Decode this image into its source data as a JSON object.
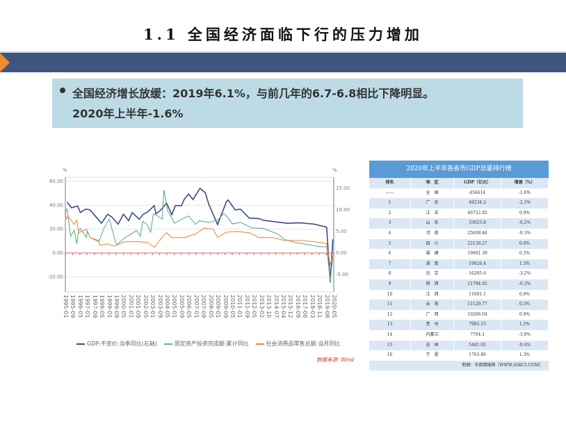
{
  "slide": {
    "title": "1.1 全国经济面临下行的压力增加",
    "note_line1": "全国经济增长放缓：2019年6.1%，与前几年的6.7-6.8相比下降明显。",
    "note_line2": "2020年上半年-1.6%",
    "colors": {
      "bar": "#3e5580",
      "accent": "#ee8c2e",
      "note_bg": "#bddbe5"
    }
  },
  "chart_data": {
    "type": "line",
    "left_unit": "%",
    "right_unit": "%",
    "left_ticks": [
      "60.00",
      "40.00",
      "20.00",
      "0.00",
      "-20.00"
    ],
    "right_ticks": [
      "15.00",
      "10.00",
      "5.00",
      "0.00",
      "-5.00"
    ],
    "ylim_left": [
      -20,
      60
    ],
    "ylim_right": [
      -5,
      15
    ],
    "x_ticks": [
      "1995-01",
      "1995-09",
      "1996-05",
      "1997-01",
      "1997-09",
      "1998-05",
      "1999-01",
      "1999-09",
      "2000-05",
      "2001-01",
      "2001-09",
      "2002-05",
      "2003-01",
      "2003-09",
      "2004-05",
      "2005-01",
      "2005-09",
      "2006-05",
      "2007-01",
      "2007-09",
      "2008-05",
      "2009-01",
      "2009-09",
      "2010-05",
      "2011-01",
      "2011-09",
      "2012-05",
      "2013-02",
      "2013-10",
      "2014-07",
      "2015-04",
      "2015-12",
      "2016-09",
      "2017-06",
      "2018-03",
      "2018-11",
      "2019-08",
      "2020-05"
    ],
    "series": [
      {
        "name": "GDP:不变价:当季同比(右轴)",
        "axis": "right",
        "color": "#3b4a86",
        "points": [
          [
            "1995-03",
            11.8
          ],
          [
            "1995-08",
            10.5
          ],
          [
            "1996-03",
            10.9
          ],
          [
            "1996-06",
            9.4
          ],
          [
            "1996-12",
            10.2
          ],
          [
            "1997-05",
            10
          ],
          [
            "1997-11",
            8.6
          ],
          [
            "1998-06",
            6.9
          ],
          [
            "1999-01",
            9
          ],
          [
            "1999-06",
            8.3
          ],
          [
            "2000-01",
            6.7
          ],
          [
            "2000-07",
            9
          ],
          [
            "2001-01",
            7.5
          ],
          [
            "2001-05",
            9.4
          ],
          [
            "2002-01",
            7.8
          ],
          [
            "2002-05",
            8.9
          ],
          [
            "2002-11",
            9.6
          ],
          [
            "2003-06",
            11
          ],
          [
            "2003-08",
            9.1
          ],
          [
            "2004-01",
            9.9
          ],
          [
            "2004-08",
            11.6
          ],
          [
            "2005-02",
            8.9
          ],
          [
            "2005-06",
            11
          ],
          [
            "2006-01",
            11
          ],
          [
            "2006-04",
            12.4
          ],
          [
            "2006-09",
            13.7
          ],
          [
            "2007-02",
            12.4
          ],
          [
            "2007-10",
            15
          ],
          [
            "2008-04",
            14
          ],
          [
            "2008-08",
            11.3
          ],
          [
            "2009-06",
            6.6
          ],
          [
            "2010-04",
            11.9
          ],
          [
            "2010-06",
            12.3
          ],
          [
            "2011-02",
            10
          ],
          [
            "2011-08",
            10.2
          ],
          [
            "2012-06",
            8.1
          ],
          [
            "2013-05",
            8
          ],
          [
            "2013-10",
            7.6
          ],
          [
            "2014-09",
            7.3
          ],
          [
            "2016-01",
            6.9
          ],
          [
            "2017-04",
            7
          ],
          [
            "2018-08",
            6.7
          ],
          [
            "2019-10",
            6.0
          ],
          [
            "2020-02",
            -6.8
          ],
          [
            "2020-05",
            3.2
          ]
        ]
      },
      {
        "name": "固定资产投资完成额:累计同比",
        "axis": "left",
        "color": "#5fae94",
        "points": [
          [
            "1995-01",
            34
          ],
          [
            "1995-03",
            37
          ],
          [
            "1995-07",
            14
          ],
          [
            "1995-11",
            19
          ],
          [
            "1996-02",
            7.6
          ],
          [
            "1996-04",
            19
          ],
          [
            "1996-06",
            20.5
          ],
          [
            "1997-01",
            13
          ],
          [
            "1997-02",
            19
          ],
          [
            "1997-05",
            13
          ],
          [
            "1998-03",
            9.5
          ],
          [
            "1998-09",
            21
          ],
          [
            "1999-03",
            28.6
          ],
          [
            "1999-06",
            20
          ],
          [
            "1999-11",
            6.7
          ],
          [
            "2000-09",
            13
          ],
          [
            "2001-04",
            16
          ],
          [
            "2001-10",
            19
          ],
          [
            "2002-02",
            14
          ],
          [
            "2002-05",
            26.7
          ],
          [
            "2002-10",
            23.8
          ],
          [
            "2003-02",
            17.5
          ],
          [
            "2003-05",
            33
          ],
          [
            "2003-10",
            31
          ],
          [
            "2004-03",
            28.6
          ],
          [
            "2004-05",
            53
          ],
          [
            "2004-09",
            36
          ],
          [
            "2005-05",
            25
          ],
          [
            "2006-02",
            28.6
          ],
          [
            "2006-09",
            31
          ],
          [
            "2007-05",
            24
          ],
          [
            "2007-09",
            27
          ],
          [
            "2008-08",
            25.7
          ],
          [
            "2009-06",
            27.6
          ],
          [
            "2010-01",
            33
          ],
          [
            "2010-04",
            31
          ],
          [
            "2010-11",
            24.4
          ],
          [
            "2011-08",
            25.7
          ],
          [
            "2012-09",
            21
          ],
          [
            "2013-10",
            20.6
          ],
          [
            "2015-02",
            16
          ],
          [
            "2015-10",
            11.4
          ],
          [
            "2016-11",
            8.6
          ],
          [
            "2018-03",
            6.7
          ],
          [
            "2019-02",
            5.3
          ],
          [
            "2019-10",
            5.3
          ],
          [
            "2020-02",
            -24
          ],
          [
            "2020-05",
            -3
          ]
        ]
      },
      {
        "name": "社会消费品零售总额:当月同比",
        "axis": "left",
        "color": "#f08a3a",
        "points": [
          [
            "1995-01",
            34
          ],
          [
            "1995-02",
            28.6
          ],
          [
            "1995-04",
            31
          ],
          [
            "1995-11",
            24
          ],
          [
            "1996-02",
            27.6
          ],
          [
            "1996-04",
            17
          ],
          [
            "1997-01",
            20
          ],
          [
            "1997-05",
            13
          ],
          [
            "1998-03",
            10.5
          ],
          [
            "1998-04",
            6.7
          ],
          [
            "1999-02",
            7.6
          ],
          [
            "1999-08",
            5.7
          ],
          [
            "2000-09",
            9.5
          ],
          [
            "2002-01",
            9.5
          ],
          [
            "2002-11",
            8.6
          ],
          [
            "2003-06",
            4.8
          ],
          [
            "2004-01",
            11.4
          ],
          [
            "2004-08",
            17
          ],
          [
            "2005-02",
            13
          ],
          [
            "2006-05",
            13
          ],
          [
            "2007-05",
            16
          ],
          [
            "2008-03",
            21
          ],
          [
            "2009-01",
            20
          ],
          [
            "2009-06",
            13
          ],
          [
            "2010-04",
            17.5
          ],
          [
            "2011-05",
            18
          ],
          [
            "2012-06",
            17
          ],
          [
            "2013-05",
            13
          ],
          [
            "2014-09",
            13
          ],
          [
            "2015-10",
            10.5
          ],
          [
            "2017-04",
            10.5
          ],
          [
            "2018-08",
            9.5
          ],
          [
            "2019-10",
            8
          ],
          [
            "2020-02",
            -10
          ],
          [
            "2020-05",
            -3
          ]
        ]
      }
    ],
    "zero_line_color": "#e05a5a",
    "grid": true,
    "legend": "bottom",
    "source": "数据来源: Wind"
  },
  "table": {
    "title": "2020年上半年各省市GDP总量排行榜",
    "headers": [
      "排名",
      "地　区",
      "GDP（亿元）",
      "增速（%）"
    ],
    "rows": [
      [
        "——",
        "全　国",
        "456614",
        "-1.6%"
      ],
      [
        "1",
        "广　东",
        "49234.2",
        "-2.5%"
      ],
      [
        "2",
        "江　苏",
        "46722.92",
        "0.9%"
      ],
      [
        "3",
        "山　东",
        "33025.8",
        "-0.2%"
      ],
      [
        "4",
        "河　南",
        "25608.46",
        "-0.3%"
      ],
      [
        "5",
        "四　川",
        "22130.27",
        "0.6%"
      ],
      [
        "6",
        "福　建",
        "19901.39",
        "0.5%"
      ],
      [
        "7",
        "湖　南",
        "19026.4",
        "1.3%"
      ],
      [
        "8",
        "北　京",
        "16205.6",
        "-3.2%"
      ],
      [
        "9",
        "陕　西",
        "11794.92",
        "-0.3%"
      ],
      [
        "10",
        "江　西",
        "11691.1",
        "0.9%"
      ],
      [
        "11",
        "云　南",
        "11129.77",
        "0.5%"
      ],
      [
        "12",
        "广　西",
        "10206.04",
        "0.8%"
      ],
      [
        "13",
        "贵　州",
        "7985.53",
        "1.5%"
      ],
      [
        "14",
        "内蒙古",
        "7704.1",
        "-3.8%"
      ],
      [
        "15",
        "吉　林",
        "5441.92",
        "-0.4%"
      ],
      [
        "16",
        "宁　夏",
        "1763.86",
        "1.3%"
      ]
    ],
    "footer": "制图：中商情报网（WWW.ASKCI.COM）"
  }
}
